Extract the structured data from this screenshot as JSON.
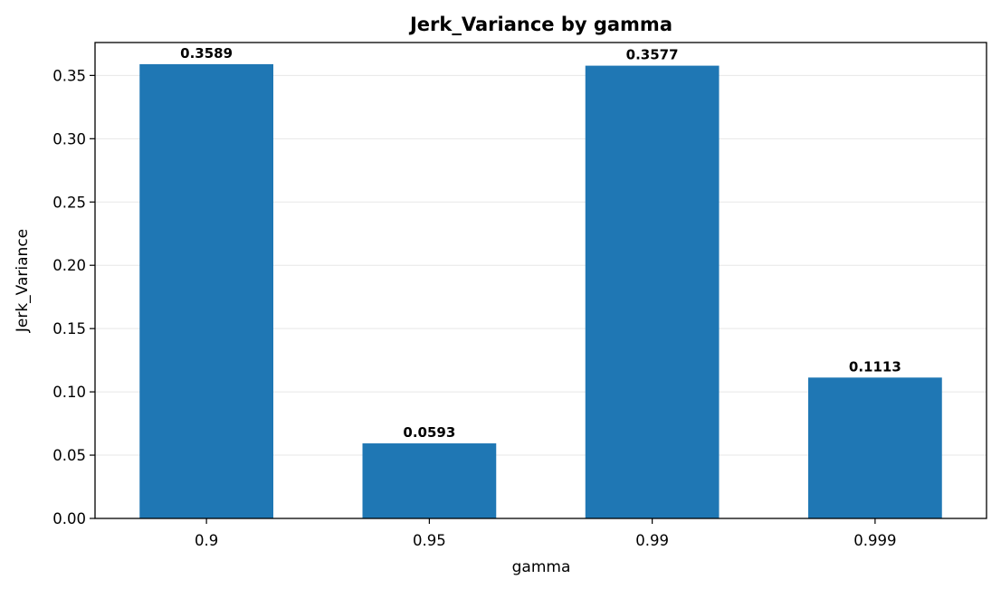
{
  "chart_data": {
    "type": "bar",
    "title": "Jerk_Variance by gamma",
    "xlabel": "gamma",
    "ylabel": "Jerk_Variance",
    "categories": [
      "0.9",
      "0.95",
      "0.99",
      "0.999"
    ],
    "values": [
      0.3589,
      0.0593,
      0.3577,
      0.1113
    ],
    "value_labels": [
      "0.3589",
      "0.0593",
      "0.3577",
      "0.1113"
    ],
    "ylim": [
      0,
      0.376
    ],
    "yticks": [
      0.0,
      0.05,
      0.1,
      0.15,
      0.2,
      0.25,
      0.3,
      0.35
    ],
    "ytick_labels": [
      "0.00",
      "0.05",
      "0.10",
      "0.15",
      "0.20",
      "0.25",
      "0.30",
      "0.35"
    ],
    "grid": "y",
    "legend": "none",
    "bar_color": "#1f77b4"
  }
}
